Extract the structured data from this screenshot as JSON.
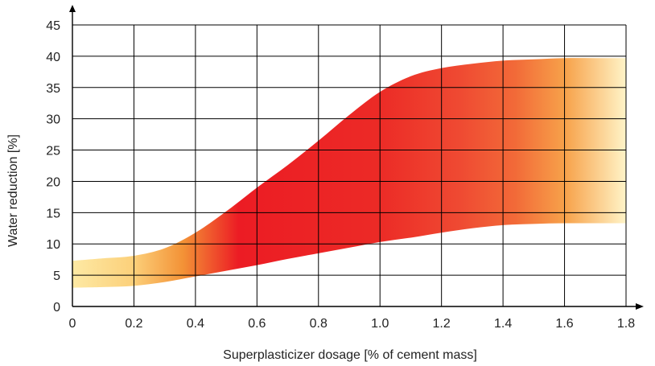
{
  "chart_data": {
    "type": "area",
    "title": "",
    "xlabel": "Superplasticizer dosage [% of cement mass]",
    "ylabel": "Water reduction [%]",
    "xlim": [
      0,
      1.8
    ],
    "ylim": [
      0,
      45
    ],
    "x_ticks": [
      "0",
      "0.2",
      "0.4",
      "0.6",
      "0.8",
      "1.0",
      "1.2",
      "1.4",
      "1.6",
      "1.8"
    ],
    "y_ticks": [
      "0",
      "5",
      "10",
      "15",
      "20",
      "25",
      "30",
      "35",
      "40",
      "45"
    ],
    "grid": true,
    "series": [
      {
        "x": [
          0,
          0.1,
          0.2,
          0.3,
          0.4,
          0.5,
          0.6,
          0.7,
          0.8,
          0.9,
          1.0,
          1.1,
          1.2,
          1.3,
          1.4,
          1.5,
          1.6,
          1.7,
          1.8
        ],
        "upper": [
          7.3,
          7.7,
          8.1,
          9.3,
          11.8,
          15.2,
          19.0,
          22.6,
          26.5,
          30.6,
          34.3,
          36.8,
          38.1,
          38.8,
          39.3,
          39.5,
          39.7,
          39.7,
          39.7
        ],
        "lower": [
          3.0,
          3.1,
          3.3,
          3.9,
          4.8,
          5.7,
          6.6,
          7.6,
          8.5,
          9.4,
          10.3,
          11.0,
          11.8,
          12.5,
          13.0,
          13.2,
          13.3,
          13.3,
          13.3
        ]
      }
    ],
    "colors": {
      "fade": "#fde9a4",
      "orange": "#f6a03a",
      "red": "#ec1c24",
      "red_soft": "#ef4a32"
    }
  }
}
